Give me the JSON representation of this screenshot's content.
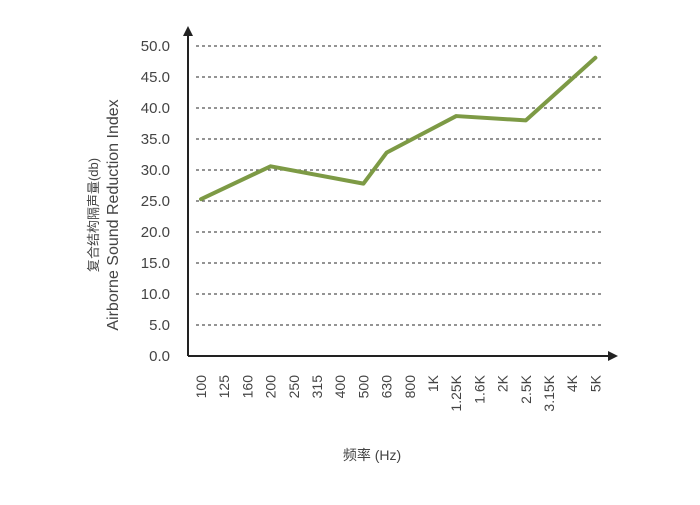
{
  "chart_data": {
    "type": "line",
    "categories": [
      "100",
      "125",
      "160",
      "200",
      "250",
      "315",
      "400",
      "500",
      "630",
      "800",
      "1K",
      "1.25K",
      "1.6K",
      "2K",
      "2.5K",
      "3.15K",
      "4K",
      "5K"
    ],
    "series": [
      {
        "values": [
          25.3,
          null,
          null,
          30.6,
          null,
          null,
          null,
          27.8,
          32.8,
          null,
          null,
          38.7,
          null,
          null,
          38.0,
          null,
          null,
          48.1
        ]
      }
    ],
    "y_ticks": [
      "0.0",
      "5.0",
      "10.0",
      "15.0",
      "20.0",
      "25.0",
      "30.0",
      "35.0",
      "40.0",
      "45.0",
      "50.0"
    ],
    "ylim": [
      0,
      50
    ],
    "ylabel_cn": "复合结构隔声量(db)",
    "ylabel_en": "Airborne Sound Reduction Index",
    "xlabel": "频率 (Hz)",
    "grid": "horizontal-dashed",
    "colors": {
      "line": "#7d9a45",
      "grid": "#555555",
      "axis": "#222222"
    }
  }
}
